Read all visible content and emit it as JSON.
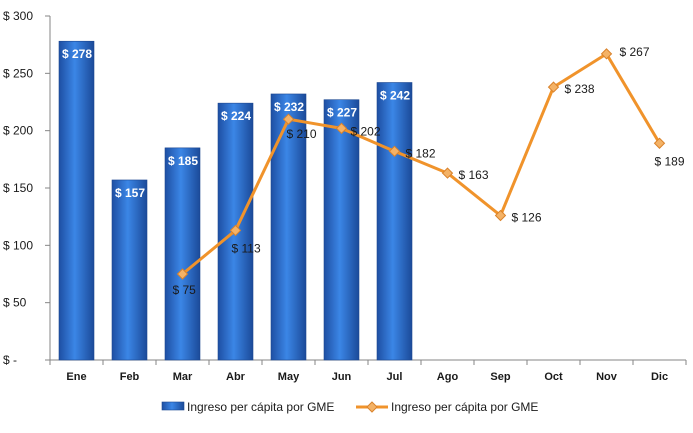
{
  "chart_data": {
    "type": "bar",
    "categories": [
      "Ene",
      "Feb",
      "Mar",
      "Abr",
      "May",
      "Jun",
      "Jul",
      "Ago",
      "Sep",
      "Oct",
      "Nov",
      "Dic"
    ],
    "ylim": [
      0,
      300
    ],
    "y_ticks": [
      {
        "value": 0,
        "label": "$ -"
      },
      {
        "value": 50,
        "label": "$ 50"
      },
      {
        "value": 100,
        "label": "$ 100"
      },
      {
        "value": 150,
        "label": "$ 150"
      },
      {
        "value": 200,
        "label": "$ 200"
      },
      {
        "value": 250,
        "label": "$ 250"
      },
      {
        "value": 300,
        "label": "$ 300"
      }
    ],
    "grid": false,
    "legend_position": "bottom",
    "series": [
      {
        "name": "Ingreso per cápita por GME",
        "kind": "bar",
        "color": "#2e6fd0",
        "values": [
          278,
          157,
          185,
          224,
          232,
          227,
          242,
          null,
          null,
          null,
          null,
          null
        ],
        "labels": [
          "$ 278",
          "$ 157",
          "$ 185",
          "$ 224",
          "$ 232",
          "$ 227",
          "$ 242",
          "",
          "",
          "",
          "",
          ""
        ]
      },
      {
        "name": "Ingreso per cápita por GME",
        "kind": "line",
        "color": "#f0932b",
        "marker_color": "#f4b266",
        "values": [
          null,
          null,
          75,
          113,
          210,
          202,
          182,
          163,
          126,
          238,
          267,
          189
        ],
        "labels": [
          "",
          "",
          "$ 75",
          "$ 113",
          "$ 210",
          "$ 202",
          "$ 182",
          "$ 163",
          "$ 126",
          "$ 238",
          "$ 267",
          "$ 189"
        ]
      }
    ]
  }
}
